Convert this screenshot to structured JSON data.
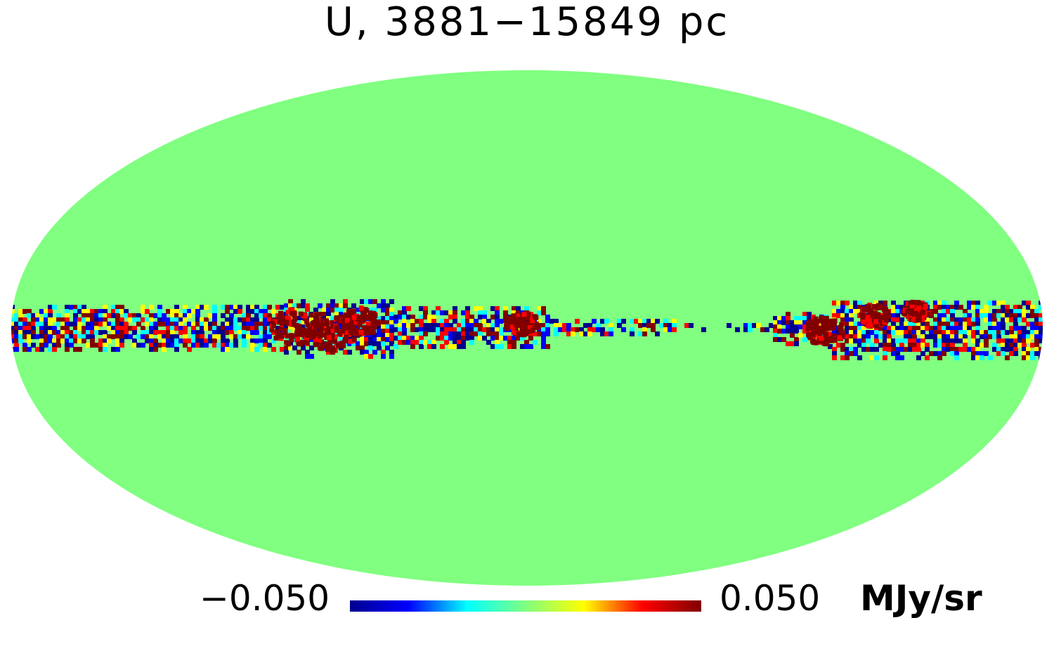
{
  "map": {
    "title": "U, 3881−15849 pc",
    "projection": "Mollweide",
    "background_color": "#80ff80",
    "colormap": "jet",
    "colormap_stops": [
      "#00008f",
      "#0000ff",
      "#00ffff",
      "#80ff80",
      "#ffff00",
      "#ff0000",
      "#800000"
    ]
  },
  "colorbar": {
    "min_label": "−0.050",
    "max_label": "0.050",
    "unit": "MJy/sr",
    "min": -0.05,
    "max": 0.05
  }
}
